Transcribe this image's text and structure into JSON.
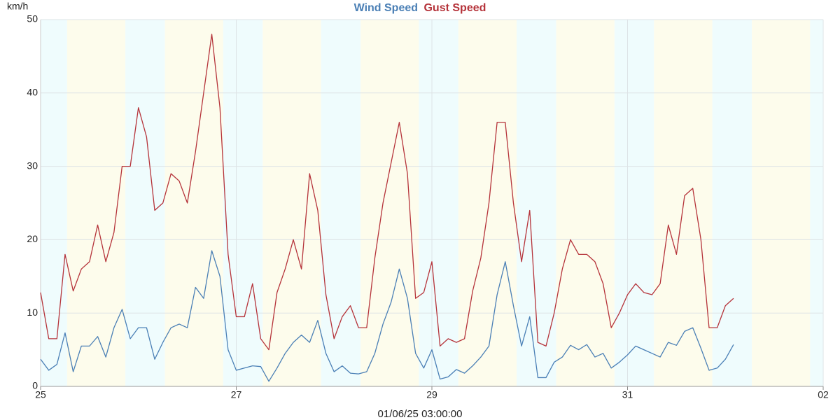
{
  "chart_data": {
    "type": "line",
    "y_label": "km/h",
    "x_label": "01/06/25 03:00:00",
    "x": [
      0,
      2,
      4,
      6,
      8,
      10,
      12,
      14,
      16,
      18,
      20,
      22,
      24,
      26,
      28,
      30,
      32,
      34,
      36,
      38,
      40,
      42,
      44,
      46,
      48,
      50,
      52,
      54,
      56,
      58,
      60,
      62,
      64,
      66,
      68,
      70,
      72,
      74,
      76,
      78,
      80,
      82,
      84,
      86,
      88,
      90,
      92,
      94,
      96,
      98,
      100,
      102,
      104,
      106,
      108,
      110,
      112,
      114,
      116,
      118,
      120,
      122,
      124,
      126,
      128,
      130,
      132,
      134,
      136,
      138,
      140,
      142,
      144,
      146,
      148,
      150,
      152,
      154,
      156,
      158,
      160,
      162,
      164,
      166,
      168,
      170
    ],
    "series": [
      {
        "name": "Wind Speed",
        "color": "#4a7fb5",
        "values": [
          3.7,
          2.2,
          3,
          7.3,
          2,
          5.5,
          5.5,
          6.8,
          4,
          8,
          10.5,
          6.5,
          8,
          8,
          3.7,
          6,
          8,
          8.5,
          8,
          13.5,
          12,
          18.5,
          15,
          5,
          2.2,
          2.5,
          2.8,
          2.7,
          0.7,
          2.5,
          4.5,
          6,
          7,
          6,
          9,
          4.5,
          2,
          2.8,
          1.8,
          1.7,
          2,
          4.5,
          8.5,
          11.5,
          16,
          12,
          4.5,
          2.5,
          5,
          1,
          1.3,
          2.3,
          1.8,
          2.8,
          4,
          5.5,
          12.5,
          17,
          11,
          5.5,
          9.5,
          1.2,
          1.2,
          3.3,
          4,
          5.6,
          5,
          5.7,
          4,
          4.5,
          2.5,
          3.3,
          4.3,
          5.5,
          5,
          4.5,
          4,
          6,
          5.6,
          7.5,
          8,
          5.2,
          2.2,
          2.5,
          3.7,
          5.7
        ]
      },
      {
        "name": "Gust Speed",
        "color": "#b5333a",
        "values": [
          12.8,
          6.5,
          6.5,
          18,
          13,
          16,
          17,
          22,
          17,
          21,
          30,
          30,
          38,
          34,
          24,
          25,
          29,
          28,
          25,
          32,
          40,
          48,
          38,
          18,
          9.5,
          9.5,
          14,
          6.5,
          5,
          12.8,
          16,
          20,
          16,
          29,
          24,
          12.5,
          6.5,
          9.5,
          11,
          8,
          8,
          17.5,
          25,
          30.5,
          36,
          29,
          12,
          12.8,
          17,
          5.5,
          6.5,
          6,
          6.5,
          13,
          17.5,
          25,
          36,
          36,
          25,
          17,
          24,
          6,
          5.5,
          10,
          16,
          20,
          18,
          18,
          17,
          14,
          8,
          10,
          12.5,
          14,
          12.8,
          12.5,
          14,
          22,
          18,
          26,
          27,
          20,
          8,
          8,
          11,
          12
        ]
      }
    ],
    "xlim": [
      0,
      192
    ],
    "xticks": [
      {
        "value": 0,
        "label": "25"
      },
      {
        "value": 48,
        "label": "27"
      },
      {
        "value": 96,
        "label": "29"
      },
      {
        "value": 144,
        "label": "31"
      },
      {
        "value": 192,
        "label": "02"
      }
    ],
    "ylim": [
      0,
      50
    ],
    "yticks": [
      0,
      10,
      20,
      30,
      40,
      50
    ],
    "grid": true
  }
}
